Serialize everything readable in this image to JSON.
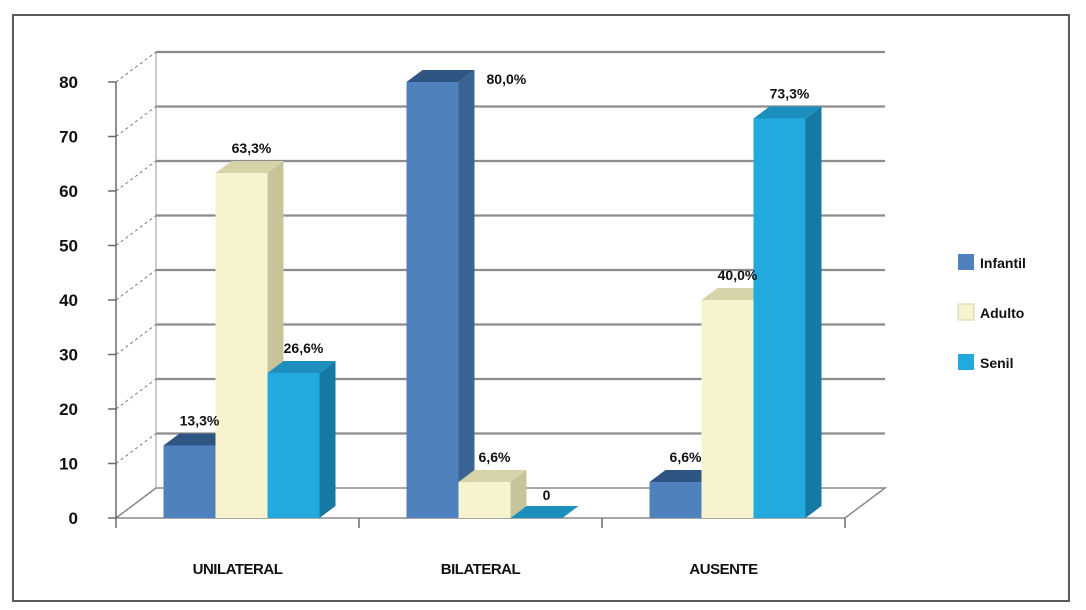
{
  "chart_data": {
    "type": "bar",
    "three_d": true,
    "categories": [
      "UNILATERAL",
      "BILATERAL",
      "AUSENTE"
    ],
    "series": [
      {
        "name": "Infantil",
        "values": [
          13.3,
          80.0,
          6.6
        ],
        "labels": [
          "13,3%",
          "80,0%",
          "6,6%"
        ],
        "color": "#4f81bd",
        "side_color": "#3a6494",
        "top_color": "#2f5582"
      },
      {
        "name": "Adulto",
        "values": [
          63.3,
          6.6,
          40.0
        ],
        "labels": [
          "63,3%",
          "6,6%",
          "40,0%"
        ],
        "color": "#f8f3cf",
        "side_color": "#c8c49a",
        "top_color": "#d7d3a8"
      },
      {
        "name": "Senil",
        "values": [
          26.6,
          0,
          73.3
        ],
        "labels": [
          "26,6%",
          "0",
          "73,3%"
        ],
        "color": "#22aade",
        "side_color": "#1679a3",
        "top_color": "#1c8fbf"
      }
    ],
    "ylim": [
      0,
      80
    ],
    "yticks": [
      0,
      10,
      20,
      30,
      40,
      50,
      60,
      70,
      80
    ],
    "ytick_labels": [
      "0",
      "10",
      "20",
      "30",
      "40",
      "50",
      "60",
      "70",
      "80"
    ],
    "grid": true,
    "legend_position": "right"
  }
}
